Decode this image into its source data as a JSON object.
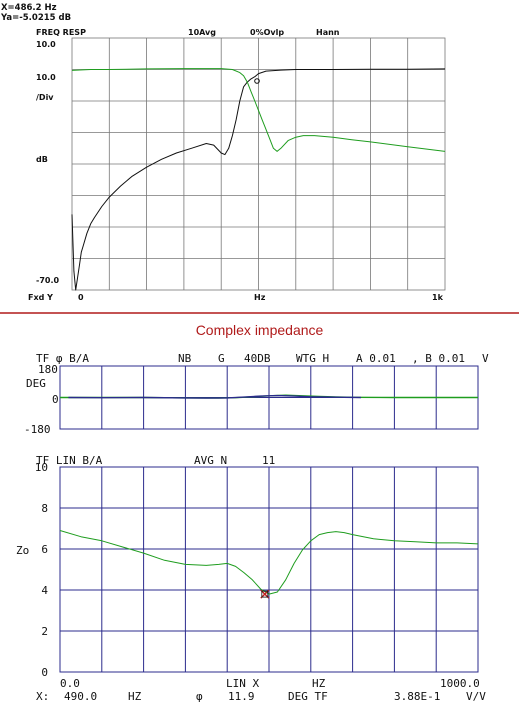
{
  "colors": {
    "grid_gray": "#777777",
    "grid_blue": "#2b2b8c",
    "green": "#1f9d1f",
    "black": "#111111",
    "divider": "#b01a1a",
    "heading": "#b01a1a"
  },
  "chart_data": [
    {
      "type": "line",
      "readout": {
        "x_text": "X=486.2 Hz",
        "y_text": "Ya=-5.0215 dB"
      },
      "header": {
        "mode": "FREQ RESP",
        "avg": "10Avg",
        "ovlp": "0%Ovlp",
        "window": "Hann"
      },
      "ylabels": {
        "top": "10.0",
        "ref": "10.0",
        "div": "/Div",
        "unit": "dB",
        "bottom": "-70.0"
      },
      "xlabels": {
        "left_tag": "Fxd Y",
        "start": "0",
        "unit": "Hz",
        "end": "1k"
      },
      "xlim": [
        0,
        1000
      ],
      "ylim": [
        -70,
        10
      ],
      "grid": true,
      "series": [
        {
          "color": "black",
          "x": [
            0,
            5,
            10,
            15,
            20,
            25,
            30,
            40,
            50,
            60,
            80,
            100,
            130,
            160,
            200,
            240,
            280,
            320,
            360,
            380,
            400,
            410,
            420,
            430,
            440,
            450,
            460,
            470,
            480,
            490,
            500,
            520,
            560,
            600,
            700,
            800,
            900,
            1000
          ],
          "y": [
            -46,
            -64,
            -70,
            -66,
            -62,
            -58,
            -56,
            -52,
            -49,
            -47,
            -43.5,
            -40.5,
            -37,
            -34,
            -31,
            -28.5,
            -26.5,
            -25,
            -23.5,
            -24,
            -26.5,
            -27,
            -25,
            -21,
            -16,
            -10,
            -5.5,
            -4,
            -3,
            -2.3,
            -1.3,
            -0.5,
            -0.2,
            0,
            0,
            0.1,
            0.1,
            0.2
          ]
        },
        {
          "color": "green",
          "x": [
            0,
            50,
            100,
            200,
            300,
            400,
            430,
            450,
            460,
            470,
            480,
            490,
            500,
            510,
            520,
            530,
            540,
            550,
            560,
            580,
            600,
            620,
            650,
            700,
            750,
            800,
            900,
            1000
          ],
          "y": [
            -0.3,
            0,
            0,
            0.2,
            0.3,
            0.3,
            0,
            -1,
            -2,
            -4,
            -7,
            -10,
            -13,
            -16,
            -19,
            -22,
            -25,
            -26,
            -25,
            -22.5,
            -21.5,
            -21,
            -21,
            -21.5,
            -22.3,
            -23,
            -24.5,
            -26
          ]
        }
      ]
    },
    {
      "type": "line",
      "header": {
        "tf": "TF φ B/A",
        "nb": "NB",
        "g": "G",
        "range": "40DB",
        "wtg": "WTG H",
        "a_val": "A 0.01",
        "b_val": ", B 0.01",
        "unit": "V"
      },
      "ylabels": {
        "top": "180",
        "unit": "DEG",
        "mid": "0",
        "bottom": "-180"
      },
      "xlim": [
        0,
        1000
      ],
      "ylim": [
        -180,
        180
      ],
      "grid": true,
      "series": [
        {
          "color": "green",
          "x": [
            0,
            100,
            200,
            300,
            380,
            420,
            460,
            500,
            540,
            580,
            620,
            660,
            700,
            800,
            900,
            1000
          ],
          "y": [
            0,
            0,
            0,
            -2,
            -3,
            -1,
            4,
            10,
            13,
            10,
            6,
            3,
            1,
            0,
            0,
            0
          ]
        },
        {
          "color": "blue",
          "x": [
            20,
            100,
            200,
            300,
            350,
            400,
            440,
            480,
            520,
            560,
            600,
            640,
            680,
            720
          ],
          "y": [
            0,
            -1,
            0,
            -2,
            -3,
            -2,
            2,
            8,
            11,
            8,
            4,
            2,
            1,
            0
          ]
        }
      ]
    },
    {
      "type": "line",
      "header": {
        "tf": "TF LIN B/A",
        "avg": "AVG N",
        "n": "11"
      },
      "yticks": [
        "10",
        "8",
        "6",
        "4",
        "2",
        "0"
      ],
      "ylabel": "Zo",
      "xlim": [
        0,
        1000
      ],
      "ylim": [
        0,
        10
      ],
      "grid": true,
      "xlabels": {
        "start": "0.0",
        "lin": "LIN X",
        "hz": "HZ",
        "end": "1000.0"
      },
      "marker": {
        "x": 490,
        "y": 3.8
      },
      "series": [
        {
          "color": "green",
          "x": [
            0,
            50,
            100,
            150,
            200,
            250,
            300,
            350,
            380,
            400,
            420,
            440,
            460,
            480,
            500,
            520,
            540,
            560,
            580,
            600,
            620,
            640,
            660,
            680,
            700,
            750,
            800,
            850,
            900,
            950,
            1000
          ],
          "y": [
            6.9,
            6.6,
            6.4,
            6.1,
            5.8,
            5.45,
            5.25,
            5.2,
            5.25,
            5.3,
            5.15,
            4.85,
            4.5,
            4.05,
            3.8,
            3.9,
            4.5,
            5.3,
            5.95,
            6.4,
            6.7,
            6.8,
            6.85,
            6.8,
            6.7,
            6.5,
            6.4,
            6.35,
            6.3,
            6.3,
            6.25
          ]
        }
      ]
    }
  ],
  "divider_title": "Complex impedance",
  "footer": {
    "x_label": "X:",
    "x_value": "490.0",
    "x_unit": "HZ",
    "phi": "φ",
    "phi_value": "11.9",
    "phi_unit": "DEG TF",
    "tf_value": "3.88E-1",
    "tf_unit": "V/V"
  }
}
